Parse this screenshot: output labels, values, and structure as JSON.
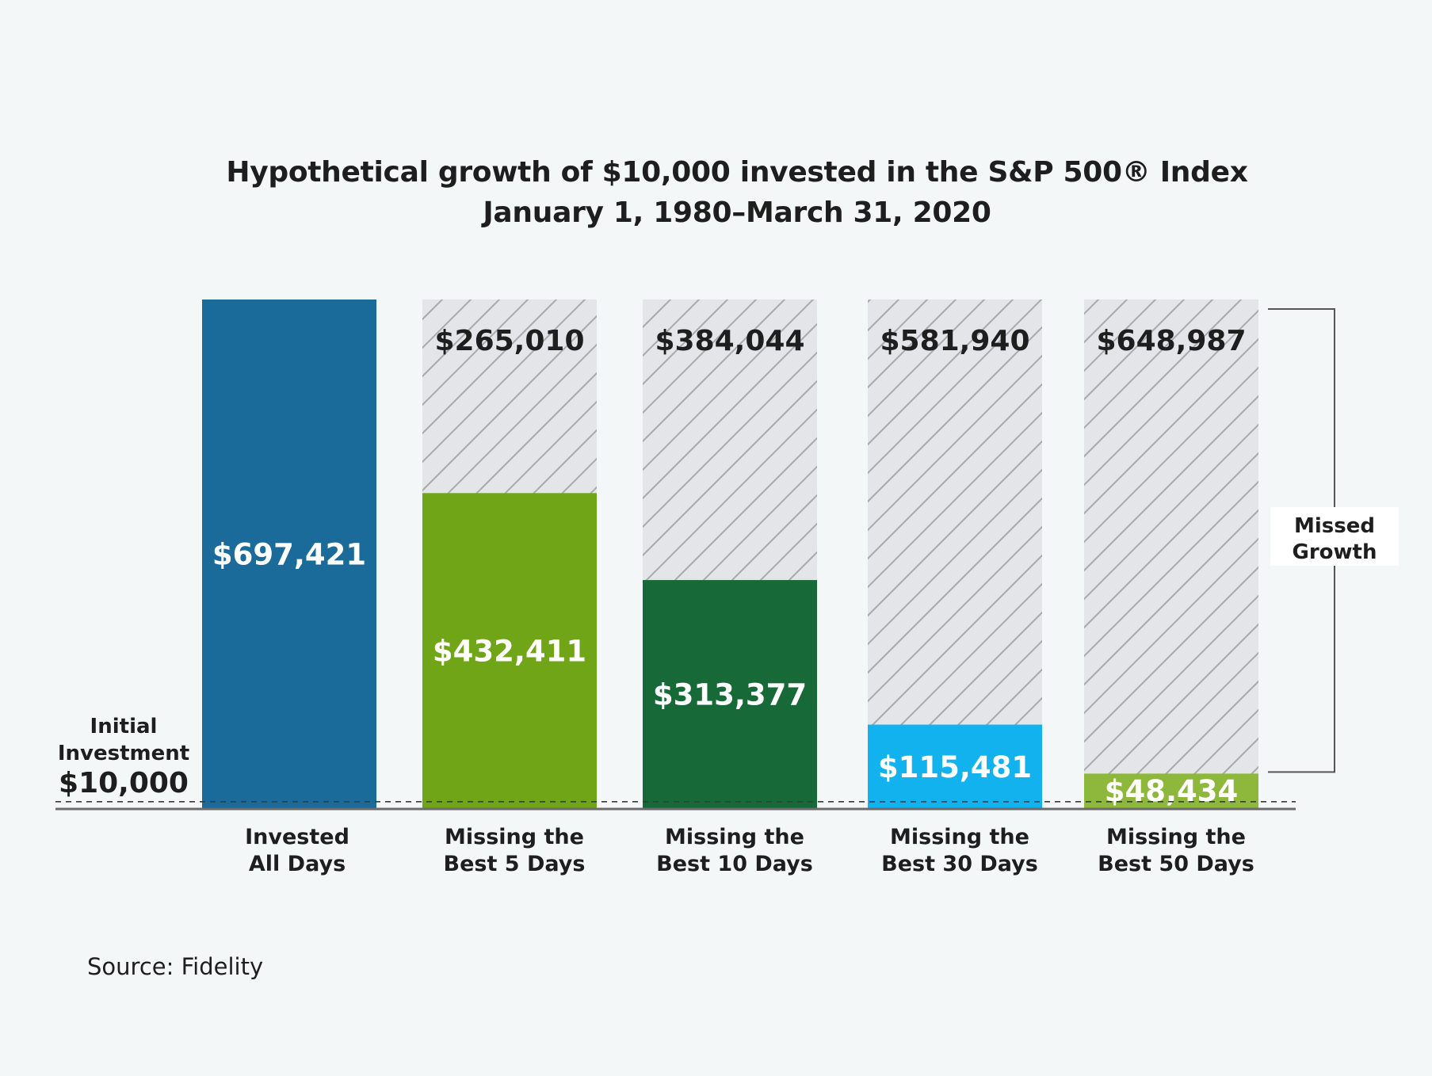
{
  "chart_data": {
    "type": "bar",
    "title": "Hypothetical growth of $10,000 invested in the S&P 500® Index",
    "subtitle": "January 1, 1980–March 31, 2020",
    "categories": [
      [
        "Invested",
        "All Days"
      ],
      [
        "Missing the",
        "Best 5 Days"
      ],
      [
        "Missing the",
        "Best 10 Days"
      ],
      [
        "Missing the",
        "Best 30 Days"
      ],
      [
        "Missing the",
        "Best 50 Days"
      ]
    ],
    "values": [
      697421,
      432411,
      313377,
      115481,
      48434
    ],
    "value_labels": [
      "$697,421",
      "$432,411",
      "$313,377",
      "$115,481",
      "$48,434"
    ],
    "missed_values": [
      null,
      265010,
      384044,
      581940,
      648987
    ],
    "missed_labels": [
      "",
      "$265,010",
      "$384,044",
      "$581,940",
      "$648,987"
    ],
    "colors": [
      "#1a6b9a",
      "#6fa516",
      "#176a38",
      "#12b2ee",
      "#8db83c"
    ],
    "missed_color": "#e3e5e9",
    "ylim": [
      0,
      697421
    ],
    "baseline": {
      "value": 10000,
      "label_lines": [
        "Initial",
        "Investment"
      ],
      "amount": "$10,000"
    },
    "bracket_label": [
      "Missed",
      "Growth"
    ],
    "xlabel": "",
    "ylabel": "",
    "grid": false
  },
  "source": "Source: Fidelity"
}
